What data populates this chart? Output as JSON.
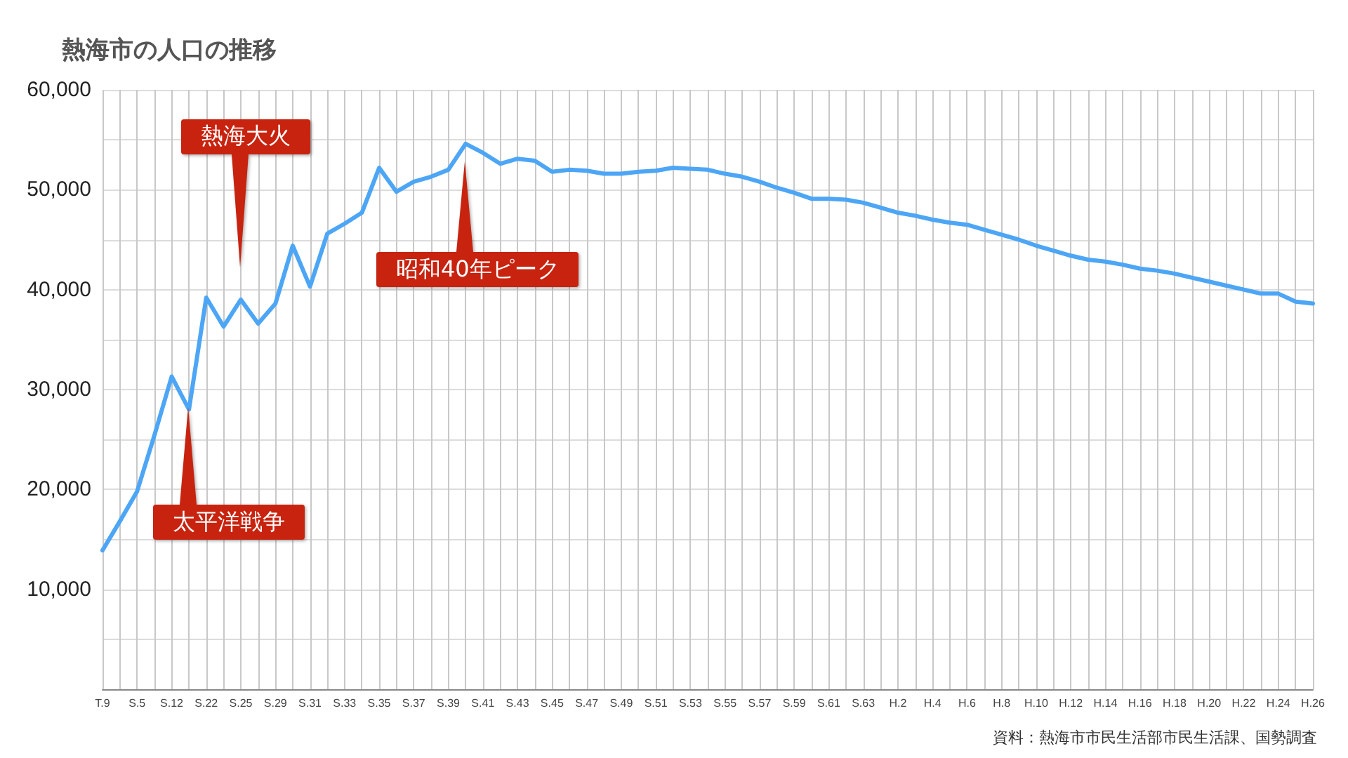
{
  "chart_data": {
    "type": "line",
    "title": "熱海市の人口の推移",
    "categories": [
      "T.9",
      null,
      "S.5",
      null,
      "S.12",
      null,
      "S.22",
      null,
      "S.25",
      null,
      "S.29",
      null,
      "S.31",
      null,
      "S.33",
      null,
      "S.35",
      null,
      "S.37",
      null,
      "S.39",
      null,
      "S.41",
      null,
      "S.43",
      null,
      "S.45",
      null,
      "S.47",
      null,
      "S.49",
      null,
      "S.51",
      null,
      "S.53",
      null,
      "S.55",
      null,
      "S.57",
      null,
      "S.59",
      null,
      "S.61",
      null,
      "S.63",
      null,
      "H.2",
      null,
      "H.4",
      null,
      "H.6",
      null,
      "H.8",
      null,
      "H.10",
      null,
      "H.12",
      null,
      "H.14",
      null,
      "H.16",
      null,
      "H.18",
      null,
      "H.20",
      null,
      "H.22",
      null,
      "H.24",
      null,
      "H.26"
    ],
    "series": [
      {
        "color": "#4da6f5",
        "values": [
          13900,
          16800,
          19800,
          25400,
          31300,
          28000,
          39200,
          36300,
          39000,
          36600,
          38600,
          44400,
          40300,
          45600,
          46600,
          47700,
          52200,
          49800,
          50800,
          51300,
          52000,
          54600,
          53700,
          52600,
          53100,
          52900,
          51800,
          52000,
          51900,
          51600,
          51600,
          51800,
          51900,
          52200,
          52100,
          52000,
          51600,
          51300,
          50800,
          50200,
          49700,
          49100,
          49100,
          49000,
          48700,
          48200,
          47700,
          47400,
          47000,
          46700,
          46500,
          46000,
          45500,
          45000,
          44400,
          43900,
          43400,
          43000,
          42800,
          42500,
          42100,
          41900,
          41600,
          41200,
          40800,
          40400,
          40000,
          39600,
          39600,
          38800,
          38600
        ]
      }
    ],
    "ylim": [
      0,
      60000
    ],
    "yticks": [
      {
        "value": 0,
        "label": null
      },
      {
        "value": 5000,
        "label": null
      },
      "10,000",
      {
        "value": 15000,
        "label": null
      },
      {
        "value": 20000,
        "label": "20,000"
      },
      {
        "value": 25000,
        "label": null
      },
      {
        "value": 30000,
        "label": "30,000"
      },
      {
        "value": 35000,
        "label": null
      },
      {
        "value": 40000,
        "label": "40,000"
      },
      {
        "value": 45000,
        "label": null
      },
      {
        "value": 50000,
        "label": "50,000"
      },
      {
        "value": 55000,
        "label": null
      },
      {
        "value": 60000,
        "label": "60,000"
      }
    ],
    "grid": true,
    "marker": "none",
    "line_style": "solid",
    "annotations": [
      "熱海大火",
      "太平洋戦争",
      "昭和40年ピーク",
      "資料：熱海市市民生活部市民生活課、国勢調査"
    ]
  }
}
